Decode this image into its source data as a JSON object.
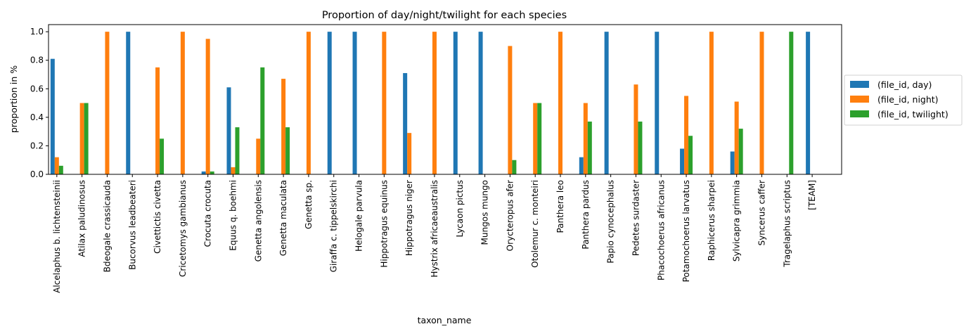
{
  "chart_data": {
    "type": "bar",
    "title": "Proportion of day/night/twilight for each species",
    "xlabel": "taxon_name",
    "ylabel": "proportion in %",
    "ylim": [
      0,
      1.05
    ],
    "yticks": [
      "0.0",
      "0.2",
      "0.4",
      "0.6",
      "0.8",
      "1.0"
    ],
    "ytick_values": [
      0,
      0.2,
      0.4,
      0.6,
      0.8,
      1.0
    ],
    "legend_position": "right",
    "grid": false,
    "categories": [
      "Alcelaphus b. lichtensteinii",
      "Atilax paludinosus",
      "Bdeogale crassicauda",
      "Bucorvus leadbeateri",
      "Civettictis civetta",
      "Cricetomys gambianus",
      "Crocuta crocuta",
      "Equus q. boehmi",
      "Genetta angolensis",
      "Genetta maculata",
      "Genetta sp.",
      "Giraffa c. tippelskirchi",
      "Helogale parvula",
      "Hippotragus equinus",
      "Hippotragus niger",
      "Hystrix africaeaustralis",
      "Lycaon pictus",
      "Mungos mungo",
      "Orycteropus afer",
      "Otolemur c. monteiri",
      "Panthera leo",
      "Panthera pardus",
      "Papio cynocephalus",
      "Pedetes surdaster",
      "Phacochoerus africanus",
      "Potamochoerus larvatus",
      "Raphicerus sharpei",
      "Sylvicapra grimmia",
      "Syncerus caffer",
      "Tragelaphus scriptus",
      "[TEAM]"
    ],
    "series": [
      {
        "name": "(file_id, day)",
        "color": "#1f77b4",
        "values": [
          0.81,
          0,
          0,
          1.0,
          0,
          0,
          0.02,
          0.61,
          0,
          0,
          0,
          1.0,
          1.0,
          0,
          0.71,
          0,
          1.0,
          1.0,
          0,
          0,
          0,
          0.12,
          1.0,
          0,
          1.0,
          0.18,
          0,
          0.16,
          0,
          0,
          1.0
        ]
      },
      {
        "name": "(file_id, night)",
        "color": "#ff7f0e",
        "values": [
          0.12,
          0.5,
          1.0,
          0,
          0.75,
          1.0,
          0.95,
          0.05,
          0.25,
          0.67,
          1.0,
          0,
          0,
          1.0,
          0.29,
          1.0,
          0,
          0,
          0.9,
          0.5,
          1.0,
          0.5,
          0,
          0.63,
          0,
          0.55,
          1.0,
          0.51,
          1.0,
          0,
          0
        ]
      },
      {
        "name": "(file_id, twilight)",
        "color": "#2ca02c",
        "values": [
          0.06,
          0.5,
          0,
          0,
          0.25,
          0,
          0.02,
          0.33,
          0.75,
          0.33,
          0,
          0,
          0,
          0,
          0,
          0,
          0,
          0,
          0.1,
          0.5,
          0,
          0.37,
          0,
          0.37,
          0,
          0.27,
          0,
          0.32,
          0,
          1.0,
          0
        ]
      }
    ]
  }
}
